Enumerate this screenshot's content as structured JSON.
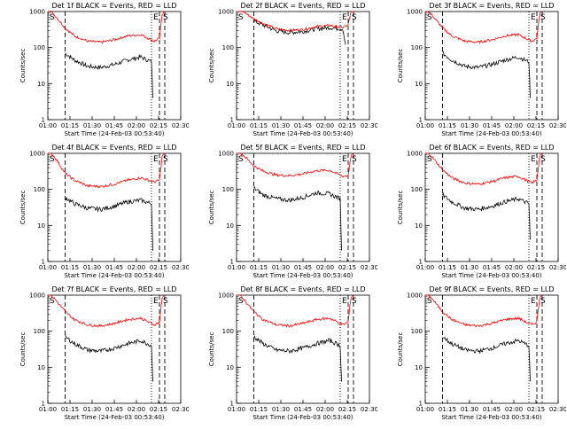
{
  "colors": {
    "events": "#000000",
    "lld": "#ff0000",
    "axis": "#000000"
  },
  "axis": {
    "ylabel": "Counts/sec",
    "xlabel": "Start Time (24-Feb-03 00:53:40)",
    "yticks": [
      "1",
      "10",
      "100",
      "1000"
    ],
    "xticks": [
      "01:00",
      "01:15",
      "01:30",
      "01:45",
      "02:00",
      "02:15",
      "02:30"
    ],
    "xlim_min": [
      0,
      100
    ],
    "ylim": [
      1,
      1000
    ],
    "scale": "log"
  },
  "chart_data": [
    {
      "type": "line",
      "title": "Det 1f BLACK = Events, RED = LLD",
      "markers": {
        "S1": "S",
        "E": "E",
        "S2": "S"
      },
      "start_line": 13,
      "dotted": 78,
      "e_line": 84,
      "s_line": 88,
      "series": [
        {
          "name": "Events",
          "x": [
            13,
            20,
            30,
            40,
            50,
            60,
            70,
            78,
            79
          ],
          "values": [
            70,
            45,
            30,
            28,
            34,
            45,
            55,
            40,
            4
          ]
        },
        {
          "name": "LLD",
          "x": [
            0,
            5,
            13,
            20,
            30,
            40,
            50,
            60,
            70,
            80,
            84,
            86,
            88
          ],
          "values": [
            1200,
            800,
            350,
            210,
            150,
            140,
            165,
            210,
            230,
            150,
            180,
            800,
            1200
          ]
        }
      ]
    },
    {
      "type": "line",
      "title": "Det 2f BLACK = Events, RED = LLD",
      "markers": {
        "S1": "S",
        "E": "E",
        "S2": "S"
      },
      "start_line": 13,
      "dotted": 78,
      "e_line": 84,
      "s_line": 88,
      "series": [
        {
          "name": "Events",
          "x": [
            13,
            20,
            30,
            40,
            50,
            60,
            70,
            80,
            82
          ],
          "values": [
            550,
            420,
            290,
            260,
            280,
            330,
            360,
            330,
            120
          ]
        },
        {
          "name": "LLD",
          "x": [
            0,
            5,
            13,
            20,
            30,
            40,
            50,
            60,
            70,
            80,
            84,
            86,
            88
          ],
          "values": [
            1200,
            1000,
            620,
            470,
            330,
            300,
            320,
            380,
            410,
            360,
            420,
            900,
            1200
          ]
        }
      ]
    },
    {
      "type": "line",
      "title": "Det 3f BLACK = Events, RED = LLD",
      "markers": {
        "S1": "S",
        "E": "E",
        "S2": "S"
      },
      "start_line": 13,
      "dotted": 78,
      "e_line": 84,
      "s_line": 88,
      "series": [
        {
          "name": "Events",
          "x": [
            13,
            20,
            30,
            40,
            50,
            60,
            70,
            78,
            79
          ],
          "values": [
            70,
            45,
            30,
            28,
            34,
            45,
            55,
            40,
            4
          ]
        },
        {
          "name": "LLD",
          "x": [
            0,
            5,
            13,
            20,
            30,
            40,
            50,
            60,
            70,
            80,
            84,
            86,
            88
          ],
          "values": [
            1200,
            800,
            350,
            210,
            150,
            140,
            165,
            210,
            230,
            150,
            180,
            800,
            1200
          ]
        }
      ]
    },
    {
      "type": "line",
      "title": "Det 4f BLACK = Events, RED = LLD",
      "markers": {
        "S1": "S",
        "E": "E",
        "S2": "S"
      },
      "start_line": 13,
      "dotted": 78,
      "e_line": 84,
      "s_line": 88,
      "series": [
        {
          "name": "Events",
          "x": [
            13,
            20,
            30,
            40,
            50,
            60,
            70,
            78,
            79
          ],
          "values": [
            60,
            40,
            30,
            28,
            34,
            45,
            50,
            40,
            2
          ]
        },
        {
          "name": "LLD",
          "x": [
            0,
            5,
            13,
            20,
            30,
            40,
            50,
            60,
            70,
            80,
            84,
            86,
            88
          ],
          "values": [
            1200,
            800,
            280,
            180,
            125,
            120,
            140,
            180,
            210,
            160,
            180,
            800,
            1200
          ]
        }
      ]
    },
    {
      "type": "line",
      "title": "Det 5f BLACK = Events, RED = LLD",
      "markers": {
        "S1": "S",
        "E": "E",
        "S2": "S"
      },
      "start_line": 13,
      "dotted": 78,
      "e_line": 84,
      "s_line": 88,
      "series": [
        {
          "name": "Events",
          "x": [
            13,
            20,
            30,
            40,
            50,
            60,
            70,
            78,
            79
          ],
          "values": [
            110,
            70,
            55,
            50,
            60,
            80,
            75,
            55,
            2
          ]
        },
        {
          "name": "LLD",
          "x": [
            0,
            5,
            13,
            20,
            30,
            40,
            50,
            60,
            70,
            80,
            84,
            86,
            88
          ],
          "values": [
            1200,
            900,
            450,
            320,
            250,
            240,
            270,
            330,
            340,
            230,
            240,
            800,
            1200
          ]
        }
      ]
    },
    {
      "type": "line",
      "title": "Det 6f BLACK = Events, RED = LLD",
      "markers": {
        "S1": "S",
        "E": "E",
        "S2": "S"
      },
      "start_line": 13,
      "dotted": 78,
      "e_line": 84,
      "s_line": 88,
      "series": [
        {
          "name": "Events",
          "x": [
            13,
            20,
            30,
            40,
            50,
            60,
            70,
            78,
            79
          ],
          "values": [
            70,
            45,
            30,
            28,
            34,
            45,
            55,
            40,
            4
          ]
        },
        {
          "name": "LLD",
          "x": [
            0,
            5,
            13,
            20,
            30,
            40,
            50,
            60,
            70,
            80,
            84,
            86,
            88
          ],
          "values": [
            1200,
            800,
            350,
            210,
            150,
            140,
            165,
            210,
            230,
            150,
            180,
            800,
            1200
          ]
        }
      ]
    },
    {
      "type": "line",
      "title": "Det 7f BLACK = Events, RED = LLD",
      "markers": {
        "S1": "S",
        "E": "E",
        "S2": "S"
      },
      "start_line": 13,
      "dotted": 78,
      "e_line": 84,
      "s_line": 88,
      "series": [
        {
          "name": "Events",
          "x": [
            13,
            20,
            30,
            40,
            50,
            60,
            70,
            78,
            79
          ],
          "values": [
            70,
            45,
            30,
            28,
            34,
            45,
            55,
            40,
            4
          ]
        },
        {
          "name": "LLD",
          "x": [
            0,
            5,
            13,
            20,
            30,
            40,
            50,
            60,
            70,
            80,
            84,
            86,
            88
          ],
          "values": [
            1200,
            800,
            350,
            210,
            150,
            140,
            165,
            210,
            230,
            150,
            180,
            800,
            1200
          ]
        }
      ]
    },
    {
      "type": "line",
      "title": "Det 8f BLACK = Events, RED = LLD",
      "markers": {
        "S1": "S",
        "E": "E",
        "S2": "S"
      },
      "start_line": 13,
      "dotted": 78,
      "e_line": 84,
      "s_line": 88,
      "series": [
        {
          "name": "Events",
          "x": [
            13,
            20,
            30,
            40,
            50,
            60,
            70,
            78,
            79
          ],
          "values": [
            70,
            45,
            30,
            28,
            34,
            45,
            55,
            40,
            4
          ]
        },
        {
          "name": "LLD",
          "x": [
            0,
            5,
            13,
            20,
            30,
            40,
            50,
            60,
            70,
            80,
            84,
            86,
            88
          ],
          "values": [
            1200,
            800,
            350,
            210,
            150,
            140,
            165,
            210,
            230,
            150,
            180,
            800,
            1200
          ]
        }
      ]
    },
    {
      "type": "line",
      "title": "Det 9f BLACK = Events, RED = LLD",
      "markers": {
        "S1": "S",
        "E": "E",
        "S2": "S"
      },
      "start_line": 13,
      "dotted": 78,
      "e_line": 84,
      "s_line": 88,
      "series": [
        {
          "name": "Events",
          "x": [
            13,
            20,
            30,
            40,
            50,
            60,
            70,
            78,
            79
          ],
          "values": [
            70,
            45,
            30,
            28,
            34,
            45,
            55,
            40,
            4
          ]
        },
        {
          "name": "LLD",
          "x": [
            0,
            5,
            13,
            20,
            30,
            40,
            50,
            60,
            70,
            80,
            84,
            86,
            88
          ],
          "values": [
            1200,
            800,
            350,
            210,
            150,
            140,
            165,
            210,
            230,
            150,
            180,
            800,
            1200
          ]
        }
      ]
    }
  ]
}
